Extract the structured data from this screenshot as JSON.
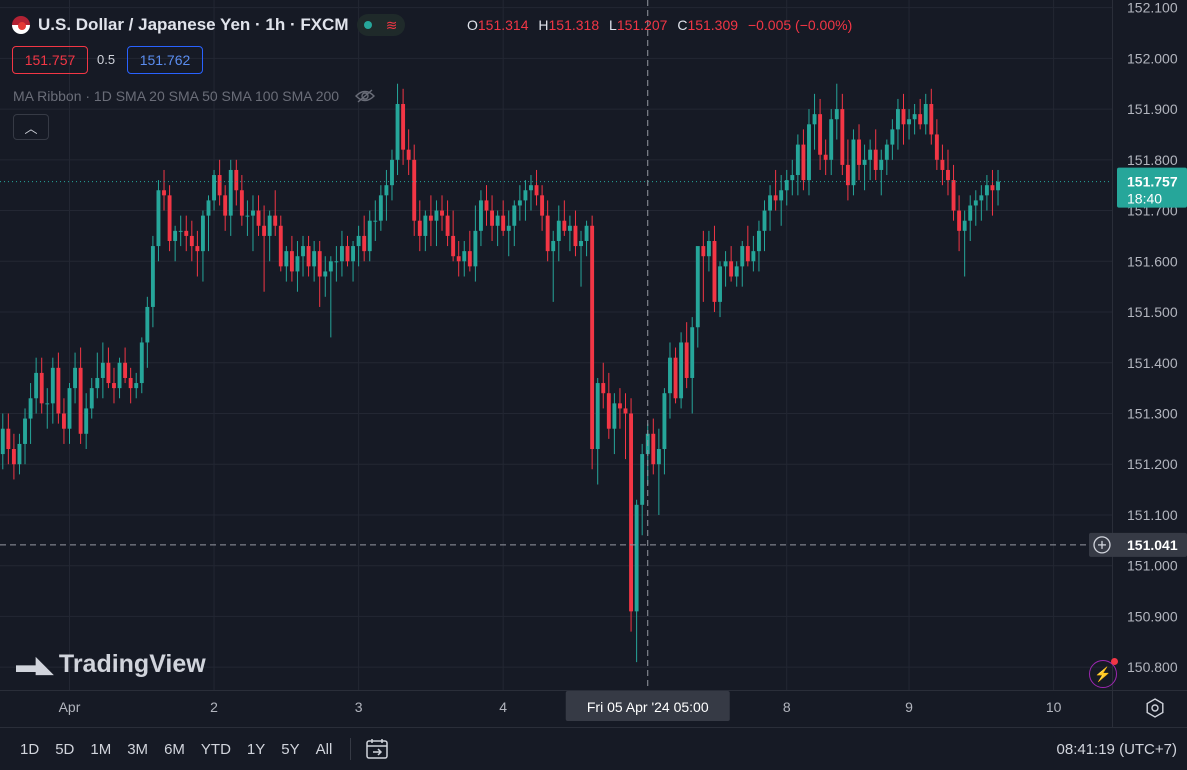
{
  "header": {
    "symbol": "U.S. Dollar / Japanese Yen · 1h · FXCM",
    "open_label": "O",
    "open": "151.314",
    "high_label": "H",
    "high": "151.318",
    "low_label": "L",
    "low": "151.207",
    "close_label": "C",
    "close": "151.309",
    "change": "−0.005 (−0.00%)",
    "bid": "151.757",
    "spread": "0.5",
    "ask": "151.762",
    "indicator": "MA Ribbon · 1D SMA 20 SMA 50 SMA 100 SMA 200"
  },
  "crosshair": {
    "price": "151.041",
    "time": "Fri 05 Apr '24   05:00"
  },
  "last_price": {
    "price": "151.757",
    "countdown": "18:40"
  },
  "logo_text": "TradingView",
  "timeframes": [
    "1D",
    "5D",
    "1M",
    "3M",
    "6M",
    "YTD",
    "1Y",
    "5Y",
    "All"
  ],
  "clock": "08:41:19 (UTC+7)",
  "colors": {
    "up": "#26a69a",
    "down": "#f23645",
    "background": "#161a25",
    "grid": "#232733",
    "text": "#b2b5be"
  },
  "icons": [
    "usd-flag-icon",
    "market-open-icon",
    "eye-hidden-icon",
    "chevron-up-icon",
    "tradingview-logo-icon",
    "calendar-range-icon",
    "lightning-icon",
    "settings-icon",
    "plus-circle-icon"
  ],
  "chart_data": {
    "type": "candlestick",
    "y_axis_ticks": [
      "150.800",
      "150.900",
      "151.000",
      "151.100",
      "151.200",
      "151.300",
      "151.400",
      "151.500",
      "151.600",
      "151.700",
      "151.800",
      "151.900",
      "152.000",
      "152.100"
    ],
    "ylim": [
      150.755,
      152.115
    ],
    "x_axis_labels": [
      {
        "label": "Apr",
        "bar": 12
      },
      {
        "label": "2",
        "bar": 38
      },
      {
        "label": "3",
        "bar": 64
      },
      {
        "label": "4",
        "bar": 90
      },
      {
        "label": "8",
        "bar": 141
      },
      {
        "label": "9",
        "bar": 163
      },
      {
        "label": "10",
        "bar": 189
      }
    ],
    "bar_count": 200,
    "crosshair_bar": 116,
    "candles": [
      [
        151.22,
        151.3,
        151.19,
        151.27
      ],
      [
        151.27,
        151.3,
        151.2,
        151.23
      ],
      [
        151.23,
        151.26,
        151.17,
        151.2
      ],
      [
        151.2,
        151.26,
        151.18,
        151.24
      ],
      [
        151.24,
        151.31,
        151.2,
        151.29
      ],
      [
        151.29,
        151.36,
        151.24,
        151.33
      ],
      [
        151.33,
        151.41,
        151.3,
        151.38
      ],
      [
        151.38,
        151.41,
        151.3,
        151.32
      ],
      [
        151.32,
        151.35,
        151.27,
        151.32
      ],
      [
        151.32,
        151.41,
        151.28,
        151.39
      ],
      [
        151.39,
        151.42,
        151.28,
        151.3
      ],
      [
        151.3,
        151.33,
        151.24,
        151.27
      ],
      [
        151.27,
        151.36,
        151.24,
        151.35
      ],
      [
        151.35,
        151.42,
        151.32,
        151.39
      ],
      [
        151.39,
        151.43,
        151.24,
        151.26
      ],
      [
        151.26,
        151.34,
        151.23,
        151.31
      ],
      [
        151.31,
        151.37,
        151.29,
        151.35
      ],
      [
        151.35,
        151.42,
        151.33,
        151.37
      ],
      [
        151.37,
        151.44,
        151.33,
        151.4
      ],
      [
        151.4,
        151.43,
        151.35,
        151.36
      ],
      [
        151.36,
        151.39,
        151.32,
        151.35
      ],
      [
        151.35,
        151.41,
        151.33,
        151.4
      ],
      [
        151.4,
        151.43,
        151.36,
        151.37
      ],
      [
        151.37,
        151.39,
        151.32,
        151.35
      ],
      [
        151.35,
        151.38,
        151.33,
        151.36
      ],
      [
        151.36,
        151.45,
        151.34,
        151.44
      ],
      [
        151.44,
        151.53,
        151.39,
        151.51
      ],
      [
        151.51,
        151.65,
        151.47,
        151.63
      ],
      [
        151.63,
        151.76,
        151.6,
        151.74
      ],
      [
        151.74,
        151.78,
        151.7,
        151.73
      ],
      [
        151.73,
        151.75,
        151.62,
        151.64
      ],
      [
        151.64,
        151.67,
        151.6,
        151.66
      ],
      [
        151.66,
        151.69,
        151.63,
        151.66
      ],
      [
        151.66,
        151.69,
        151.62,
        151.65
      ],
      [
        151.65,
        151.68,
        151.6,
        151.63
      ],
      [
        151.63,
        151.66,
        151.57,
        151.62
      ],
      [
        151.62,
        151.7,
        151.56,
        151.69
      ],
      [
        151.69,
        151.73,
        151.62,
        151.72
      ],
      [
        151.72,
        151.78,
        151.7,
        151.77
      ],
      [
        151.77,
        151.8,
        151.71,
        151.73
      ],
      [
        151.73,
        151.75,
        151.66,
        151.69
      ],
      [
        151.69,
        151.8,
        151.65,
        151.78
      ],
      [
        151.78,
        151.8,
        151.71,
        151.74
      ],
      [
        151.74,
        151.77,
        151.67,
        151.69
      ],
      [
        151.69,
        151.72,
        151.65,
        151.69
      ],
      [
        151.69,
        151.73,
        151.62,
        151.7
      ],
      [
        151.7,
        151.73,
        151.65,
        151.67
      ],
      [
        151.67,
        151.71,
        151.54,
        151.65
      ],
      [
        151.65,
        151.7,
        151.6,
        151.69
      ],
      [
        151.69,
        151.74,
        151.65,
        151.67
      ],
      [
        151.67,
        151.69,
        151.58,
        151.59
      ],
      [
        151.59,
        151.63,
        151.56,
        151.62
      ],
      [
        151.62,
        151.65,
        151.56,
        151.58
      ],
      [
        151.58,
        151.64,
        151.54,
        151.61
      ],
      [
        151.61,
        151.65,
        151.57,
        151.63
      ],
      [
        151.63,
        151.65,
        151.57,
        151.59
      ],
      [
        151.59,
        151.64,
        151.56,
        151.62
      ],
      [
        151.62,
        151.64,
        151.51,
        151.57
      ],
      [
        151.57,
        151.61,
        151.53,
        151.58
      ],
      [
        151.58,
        151.61,
        151.45,
        151.6
      ],
      [
        151.6,
        151.63,
        151.56,
        151.6
      ],
      [
        151.6,
        151.66,
        151.57,
        151.63
      ],
      [
        151.63,
        151.65,
        151.59,
        151.6
      ],
      [
        151.6,
        151.64,
        151.56,
        151.63
      ],
      [
        151.63,
        151.67,
        151.59,
        151.65
      ],
      [
        151.65,
        151.69,
        151.6,
        151.62
      ],
      [
        151.62,
        151.7,
        151.6,
        151.68
      ],
      [
        151.68,
        151.72,
        151.64,
        151.68
      ],
      [
        151.68,
        151.75,
        151.66,
        151.73
      ],
      [
        151.73,
        151.78,
        151.68,
        151.75
      ],
      [
        151.75,
        151.82,
        151.72,
        151.8
      ],
      [
        151.8,
        151.95,
        151.77,
        151.91
      ],
      [
        151.91,
        151.94,
        151.79,
        151.82
      ],
      [
        151.82,
        151.86,
        151.77,
        151.8
      ],
      [
        151.8,
        151.83,
        151.65,
        151.68
      ],
      [
        151.68,
        151.72,
        151.62,
        151.65
      ],
      [
        151.65,
        151.7,
        151.62,
        151.69
      ],
      [
        151.69,
        151.73,
        151.63,
        151.68
      ],
      [
        151.68,
        151.72,
        151.63,
        151.7
      ],
      [
        151.7,
        151.73,
        151.66,
        151.69
      ],
      [
        151.69,
        151.72,
        151.63,
        151.65
      ],
      [
        151.65,
        151.7,
        151.6,
        151.61
      ],
      [
        151.61,
        151.64,
        151.57,
        151.6
      ],
      [
        151.6,
        151.64,
        151.57,
        151.62
      ],
      [
        151.62,
        151.66,
        151.58,
        151.59
      ],
      [
        151.59,
        151.71,
        151.56,
        151.66
      ],
      [
        151.66,
        151.74,
        151.63,
        151.72
      ],
      [
        151.72,
        151.75,
        151.67,
        151.7
      ],
      [
        151.7,
        151.73,
        151.64,
        151.67
      ],
      [
        151.67,
        151.7,
        151.63,
        151.69
      ],
      [
        151.69,
        151.72,
        151.65,
        151.66
      ],
      [
        151.66,
        151.7,
        151.61,
        151.67
      ],
      [
        151.67,
        151.72,
        151.63,
        151.71
      ],
      [
        151.71,
        151.75,
        151.68,
        151.72
      ],
      [
        151.72,
        151.76,
        151.68,
        151.74
      ],
      [
        151.74,
        151.77,
        151.7,
        151.75
      ],
      [
        151.75,
        151.78,
        151.71,
        151.73
      ],
      [
        151.73,
        151.75,
        151.66,
        151.69
      ],
      [
        151.69,
        151.72,
        151.6,
        151.62
      ],
      [
        151.62,
        151.66,
        151.52,
        151.64
      ],
      [
        151.64,
        151.71,
        151.6,
        151.68
      ],
      [
        151.68,
        151.72,
        151.65,
        151.66
      ],
      [
        151.66,
        151.69,
        151.62,
        151.67
      ],
      [
        151.67,
        151.7,
        151.61,
        151.63
      ],
      [
        151.63,
        151.66,
        151.55,
        151.64
      ],
      [
        151.64,
        151.68,
        151.61,
        151.67
      ],
      [
        151.67,
        151.69,
        151.19,
        151.23
      ],
      [
        151.23,
        151.37,
        151.16,
        151.36
      ],
      [
        151.36,
        151.4,
        151.31,
        151.34
      ],
      [
        151.34,
        151.38,
        151.25,
        151.27
      ],
      [
        151.27,
        151.34,
        151.22,
        151.32
      ],
      [
        151.32,
        151.35,
        151.27,
        151.31
      ],
      [
        151.31,
        151.34,
        151.21,
        151.3
      ],
      [
        151.3,
        151.33,
        150.87,
        150.91
      ],
      [
        150.91,
        151.13,
        150.81,
        151.12
      ],
      [
        151.12,
        151.24,
        151.06,
        151.22
      ],
      [
        151.22,
        151.28,
        151.16,
        151.26
      ],
      [
        151.26,
        151.29,
        151.18,
        151.2
      ],
      [
        151.2,
        151.27,
        151.1,
        151.23
      ],
      [
        151.23,
        151.35,
        151.18,
        151.34
      ],
      [
        151.34,
        151.44,
        151.29,
        151.41
      ],
      [
        151.41,
        151.43,
        151.32,
        151.33
      ],
      [
        151.33,
        151.46,
        151.31,
        151.44
      ],
      [
        151.44,
        151.48,
        151.35,
        151.37
      ],
      [
        151.37,
        151.49,
        151.3,
        151.47
      ],
      [
        151.47,
        151.62,
        151.43,
        151.63
      ],
      [
        151.63,
        151.66,
        151.52,
        151.61
      ],
      [
        151.61,
        151.66,
        151.58,
        151.64
      ],
      [
        151.64,
        151.67,
        151.5,
        151.52
      ],
      [
        151.52,
        151.6,
        151.49,
        151.59
      ],
      [
        151.59,
        151.62,
        151.55,
        151.6
      ],
      [
        151.6,
        151.63,
        151.56,
        151.57
      ],
      [
        151.57,
        151.6,
        151.55,
        151.59
      ],
      [
        151.59,
        151.64,
        151.55,
        151.63
      ],
      [
        151.63,
        151.67,
        151.59,
        151.6
      ],
      [
        151.6,
        151.65,
        151.58,
        151.62
      ],
      [
        151.62,
        151.68,
        151.58,
        151.66
      ],
      [
        151.66,
        151.72,
        151.62,
        151.7
      ],
      [
        151.7,
        151.75,
        151.66,
        151.73
      ],
      [
        151.73,
        151.78,
        151.7,
        151.72
      ],
      [
        151.72,
        151.77,
        151.67,
        151.74
      ],
      [
        151.74,
        151.78,
        151.71,
        151.76
      ],
      [
        151.76,
        151.8,
        151.73,
        151.77
      ],
      [
        151.77,
        151.85,
        151.73,
        151.83
      ],
      [
        151.83,
        151.86,
        151.74,
        151.76
      ],
      [
        151.76,
        151.9,
        151.73,
        151.87
      ],
      [
        151.87,
        151.93,
        151.82,
        151.89
      ],
      [
        151.89,
        151.92,
        151.78,
        151.81
      ],
      [
        151.81,
        151.84,
        151.77,
        151.8
      ],
      [
        151.8,
        151.9,
        151.77,
        151.88
      ],
      [
        151.88,
        151.95,
        151.84,
        151.9
      ],
      [
        151.9,
        151.93,
        151.77,
        151.79
      ],
      [
        151.79,
        151.84,
        151.72,
        151.75
      ],
      [
        151.75,
        151.86,
        151.73,
        151.84
      ],
      [
        151.84,
        151.87,
        151.76,
        151.79
      ],
      [
        151.79,
        151.83,
        151.74,
        151.8
      ],
      [
        151.8,
        151.84,
        151.76,
        151.82
      ],
      [
        151.82,
        151.86,
        151.76,
        151.78
      ],
      [
        151.78,
        151.82,
        151.73,
        151.8
      ],
      [
        151.8,
        151.84,
        151.77,
        151.83
      ],
      [
        151.83,
        151.88,
        151.8,
        151.86
      ],
      [
        151.86,
        151.92,
        151.82,
        151.9
      ],
      [
        151.9,
        151.93,
        151.83,
        151.87
      ],
      [
        151.87,
        151.9,
        151.84,
        151.88
      ],
      [
        151.88,
        151.91,
        151.85,
        151.89
      ],
      [
        151.89,
        151.92,
        151.86,
        151.87
      ],
      [
        151.87,
        151.93,
        151.85,
        151.91
      ],
      [
        151.91,
        151.94,
        151.83,
        151.85
      ],
      [
        151.85,
        151.88,
        151.78,
        151.8
      ],
      [
        151.8,
        151.83,
        151.75,
        151.78
      ],
      [
        151.78,
        151.82,
        151.73,
        151.76
      ],
      [
        151.76,
        151.79,
        151.68,
        151.7
      ],
      [
        151.7,
        151.73,
        151.62,
        151.66
      ],
      [
        151.66,
        151.7,
        151.57,
        151.68
      ],
      [
        151.68,
        151.73,
        151.64,
        151.71
      ],
      [
        151.71,
        151.74,
        151.67,
        151.72
      ],
      [
        151.72,
        151.75,
        151.68,
        151.73
      ],
      [
        151.73,
        151.77,
        151.7,
        151.75
      ],
      [
        151.75,
        151.78,
        151.69,
        151.74
      ],
      [
        151.74,
        151.78,
        151.71,
        151.757
      ]
    ]
  }
}
